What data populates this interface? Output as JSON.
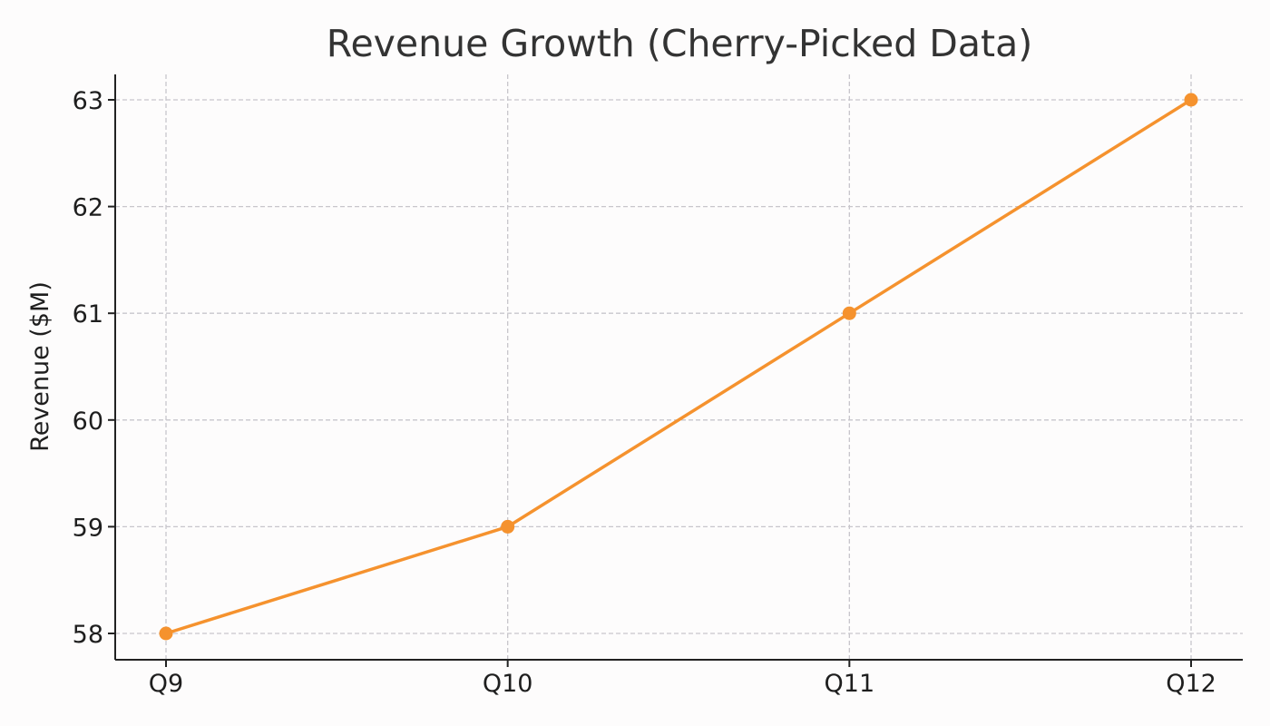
{
  "colors": {
    "background": "#fdfcfc",
    "series": "#f5922e",
    "grid": "#c8c6cc",
    "text": "#1e1e1e",
    "title": "#333333"
  },
  "chart_data": {
    "type": "line",
    "title": "Revenue Growth (Cherry-Picked Data)",
    "xlabel": "",
    "ylabel": "Revenue ($M)",
    "categories": [
      "Q9",
      "Q10",
      "Q11",
      "Q12"
    ],
    "series": [
      {
        "values": [
          58,
          59,
          61,
          63
        ]
      }
    ],
    "ylim": [
      57.75,
      63.25
    ],
    "yticks": [
      "58",
      "59",
      "60",
      "61",
      "62",
      "63"
    ],
    "grid": true,
    "legend": "none"
  }
}
